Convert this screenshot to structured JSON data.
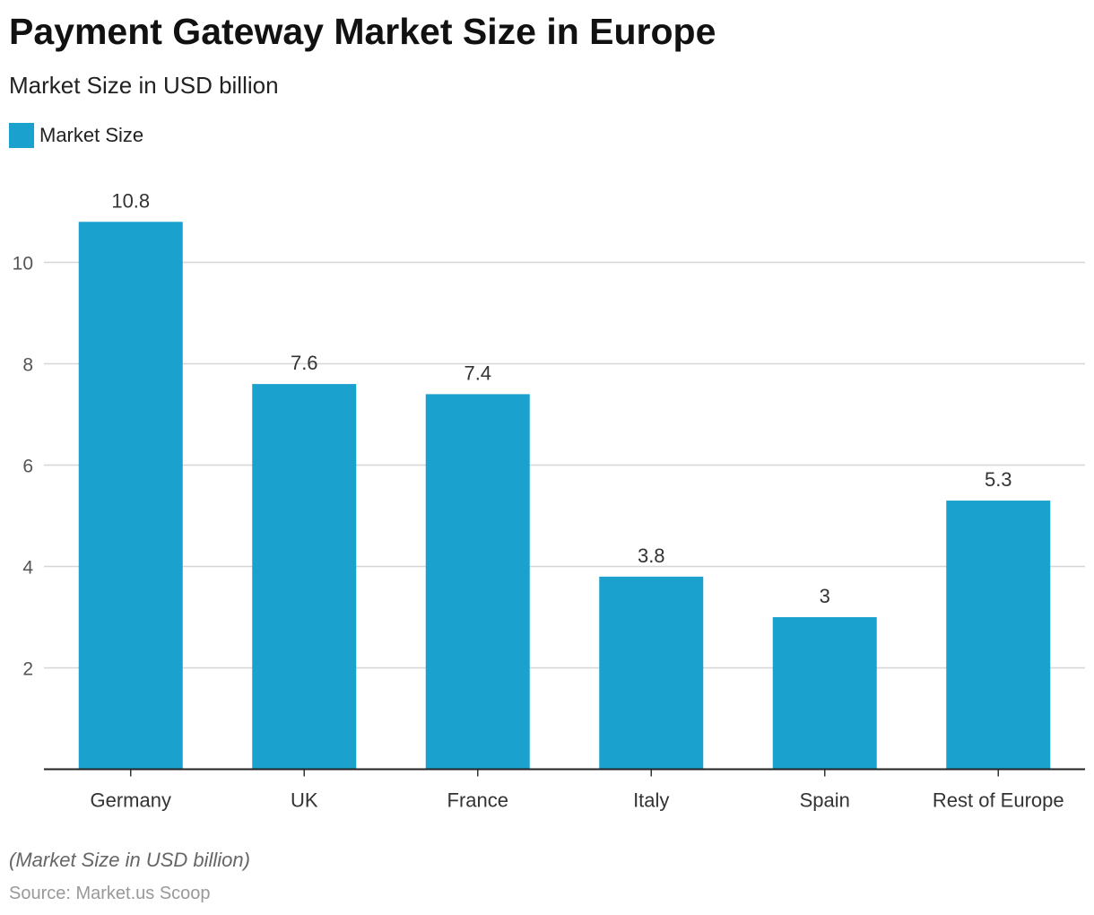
{
  "chart_data": {
    "type": "bar",
    "title": "Payment Gateway Market Size in Europe",
    "subtitle": "Market Size in USD billion",
    "categories": [
      "Germany",
      "UK",
      "France",
      "Italy",
      "Spain",
      "Rest of Europe"
    ],
    "series": [
      {
        "name": "Market Size",
        "values": [
          10.8,
          7.6,
          7.4,
          3.8,
          3,
          5.3
        ],
        "color": "#1aa1cd"
      }
    ],
    "data_labels": [
      "10.8",
      "7.6",
      "7.4",
      "3.8",
      "3",
      "5.3"
    ],
    "ylim": [
      0,
      11.2
    ],
    "yticks": [
      2,
      4,
      6,
      8,
      10
    ],
    "grid": true,
    "legend_position": "top-left",
    "xlabel": "",
    "ylabel": ""
  },
  "footer": {
    "note": "(Market Size in USD billion)",
    "source": "Source: Market.us Scoop"
  }
}
